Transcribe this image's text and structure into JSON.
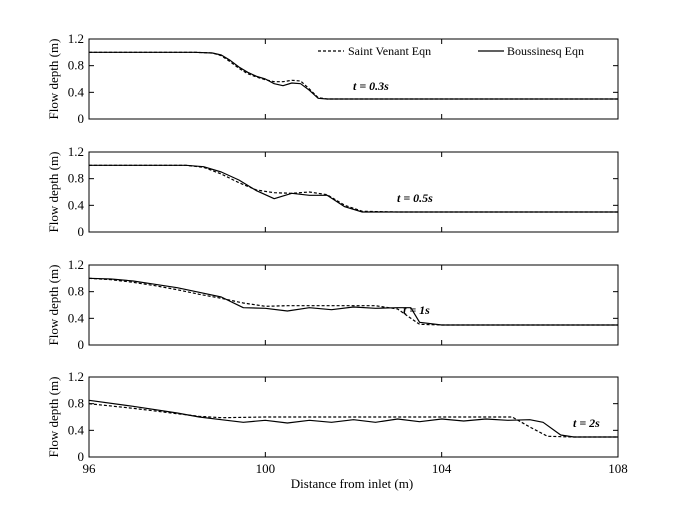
{
  "chart_data": {
    "type": "line",
    "xlabel": "Distance from inlet (m)",
    "ylabel": "Flow depth (m)",
    "xlim": [
      96,
      108
    ],
    "ylim": [
      0,
      1.2
    ],
    "xticks": [
      96,
      100,
      104,
      108
    ],
    "yticks": [
      0,
      0.4,
      0.8,
      1.2
    ],
    "yticklabels": [
      "0",
      "0.4",
      "0.8",
      "1.2"
    ],
    "legend": {
      "placement": "top-right",
      "entries": [
        "Saint Venant Eqn",
        "Boussinesq Eqn"
      ]
    },
    "series_styles": {
      "Saint Venant Eqn": "dashed",
      "Boussinesq Eqn": "solid"
    },
    "color": "#000000",
    "panels": [
      {
        "annotation": "t = 0.3s",
        "series": [
          {
            "name": "Saint Venant Eqn",
            "x": [
              96,
              98.4,
              98.8,
              99.0,
              99.2,
              99.4,
              99.6,
              99.8,
              100.0,
              100.2,
              100.4,
              100.6,
              100.8,
              101.0,
              101.2,
              101.4,
              102,
              108
            ],
            "y": [
              1.0,
              1.0,
              0.99,
              0.95,
              0.86,
              0.76,
              0.68,
              0.63,
              0.59,
              0.56,
              0.56,
              0.58,
              0.57,
              0.45,
              0.32,
              0.3,
              0.3,
              0.3
            ]
          },
          {
            "name": "Boussinesq Eqn",
            "x": [
              96,
              98.4,
              98.8,
              99.0,
              99.2,
              99.4,
              99.6,
              99.8,
              100.0,
              100.2,
              100.4,
              100.6,
              100.8,
              101.0,
              101.2,
              101.4,
              102,
              108
            ],
            "y": [
              1.0,
              1.0,
              0.99,
              0.96,
              0.88,
              0.78,
              0.7,
              0.64,
              0.6,
              0.53,
              0.5,
              0.54,
              0.53,
              0.43,
              0.31,
              0.3,
              0.3,
              0.3
            ]
          }
        ]
      },
      {
        "annotation": "t = 0.5s",
        "series": [
          {
            "name": "Saint Venant Eqn",
            "x": [
              96,
              98.2,
              98.6,
              99.0,
              99.4,
              99.8,
              100.2,
              100.6,
              101.0,
              101.4,
              101.8,
              102.2,
              103,
              108
            ],
            "y": [
              1.0,
              1.0,
              0.97,
              0.87,
              0.74,
              0.63,
              0.59,
              0.58,
              0.6,
              0.56,
              0.4,
              0.31,
              0.3,
              0.3
            ]
          },
          {
            "name": "Boussinesq Eqn",
            "x": [
              96,
              98.2,
              98.6,
              99.0,
              99.4,
              99.8,
              100.2,
              100.6,
              101.0,
              101.4,
              101.8,
              102.2,
              103,
              108
            ],
            "y": [
              1.0,
              1.0,
              0.98,
              0.9,
              0.78,
              0.62,
              0.5,
              0.58,
              0.55,
              0.55,
              0.38,
              0.3,
              0.3,
              0.3
            ]
          }
        ]
      },
      {
        "annotation": "t = 1s",
        "series": [
          {
            "name": "Saint Venant Eqn",
            "x": [
              96,
              96.5,
              97,
              97.5,
              98,
              98.5,
              99,
              99.5,
              100,
              100.5,
              101,
              101.5,
              102,
              102.5,
              103,
              103.3,
              103.5,
              104,
              108
            ],
            "y": [
              1.0,
              0.98,
              0.94,
              0.89,
              0.83,
              0.76,
              0.7,
              0.63,
              0.58,
              0.59,
              0.59,
              0.59,
              0.59,
              0.59,
              0.54,
              0.4,
              0.31,
              0.3,
              0.3
            ]
          },
          {
            "name": "Boussinesq Eqn",
            "x": [
              96,
              96.5,
              97,
              97.5,
              98,
              98.5,
              99,
              99.5,
              100,
              100.5,
              101,
              101.5,
              102,
              102.5,
              103,
              103.3,
              103.5,
              104,
              108
            ],
            "y": [
              1.0,
              0.99,
              0.96,
              0.91,
              0.86,
              0.79,
              0.72,
              0.56,
              0.55,
              0.51,
              0.56,
              0.53,
              0.57,
              0.55,
              0.56,
              0.56,
              0.34,
              0.3,
              0.3
            ]
          }
        ]
      },
      {
        "annotation": "t = 2s",
        "series": [
          {
            "name": "Saint Venant Eqn",
            "x": [
              96,
              97,
              98,
              98.5,
              99,
              100,
              101,
              102,
              103,
              104,
              105,
              105.6,
              106.0,
              106.4,
              107,
              108
            ],
            "y": [
              0.8,
              0.73,
              0.65,
              0.61,
              0.59,
              0.6,
              0.6,
              0.6,
              0.6,
              0.6,
              0.6,
              0.6,
              0.45,
              0.31,
              0.3,
              0.3
            ]
          },
          {
            "name": "Boussinesq Eqn",
            "x": [
              96,
              97,
              98,
              98.5,
              99,
              99.5,
              100,
              100.5,
              101,
              101.5,
              102,
              102.5,
              103,
              103.5,
              104,
              104.5,
              105,
              105.5,
              106,
              106.3,
              106.7,
              107,
              108
            ],
            "y": [
              0.85,
              0.76,
              0.66,
              0.6,
              0.56,
              0.52,
              0.55,
              0.51,
              0.55,
              0.52,
              0.56,
              0.52,
              0.57,
              0.53,
              0.57,
              0.54,
              0.57,
              0.55,
              0.56,
              0.52,
              0.33,
              0.3,
              0.3
            ]
          }
        ]
      }
    ]
  }
}
